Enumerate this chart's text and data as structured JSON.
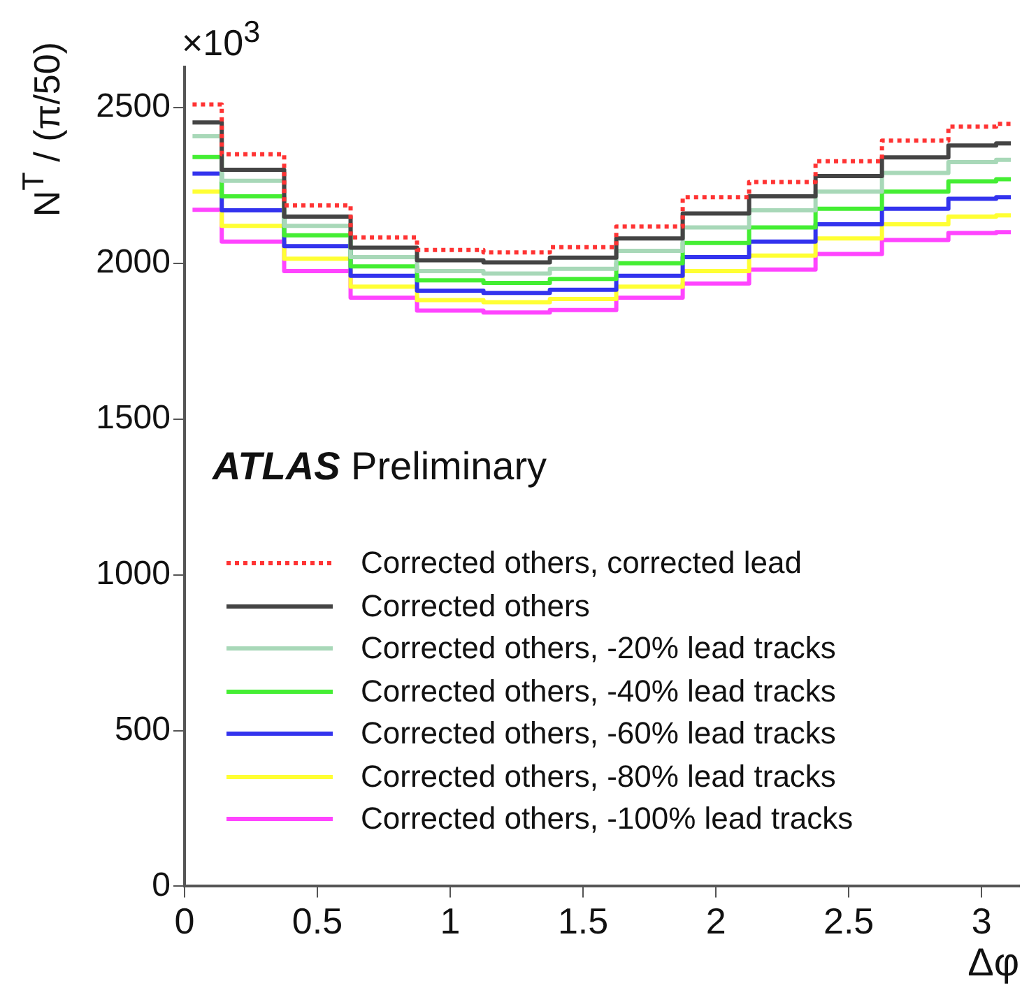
{
  "chart_data": {
    "type": "step",
    "xlabel": "Δφ",
    "ylabel": "N$^{T}$ / (π/50)",
    "annotations": [
      "×10$^{3}$",
      "ATLAS Preliminary"
    ],
    "x": [
      0.03,
      0.25,
      0.5,
      0.75,
      1.0,
      1.25,
      1.5,
      1.75,
      2.0,
      2.25,
      2.5,
      2.75,
      3.0,
      3.11
    ],
    "xlim": [
      0,
      3.1416
    ],
    "xticks": [
      0,
      0.5,
      1,
      1.5,
      2,
      2.5,
      3
    ],
    "ylim": [
      0,
      2630
    ],
    "yticks": [
      0,
      500,
      1000,
      1500,
      2000,
      2500
    ],
    "grid": false,
    "legend": "bottom",
    "marker": "none",
    "series": [
      {
        "name": "Corrected others, corrected lead",
        "color": "#ff3333",
        "line_style": "dotted",
        "values": [
          2510,
          2350,
          2186,
          2083,
          2043,
          2035,
          2052,
          2118,
          2212,
          2261,
          2328,
          2394,
          2439,
          2448
        ]
      },
      {
        "name": "Corrected others",
        "color": "#444444",
        "line_style": "solid",
        "values": [
          2452,
          2300,
          2150,
          2050,
          2010,
          2003,
          2018,
          2080,
          2160,
          2215,
          2280,
          2340,
          2378,
          2385
        ]
      },
      {
        "name": "Corrected others, -20% lead tracks",
        "color": "#a8d8b8",
        "line_style": "solid",
        "values": [
          2408,
          2265,
          2120,
          2020,
          1975,
          1967,
          1982,
          2040,
          2115,
          2170,
          2230,
          2290,
          2325,
          2332
        ]
      },
      {
        "name": "Corrected others, -40% lead tracks",
        "color": "#44ee33",
        "line_style": "solid",
        "values": [
          2341,
          2215,
          2090,
          1990,
          1945,
          1937,
          1950,
          2000,
          2065,
          2115,
          2175,
          2230,
          2263,
          2270
        ]
      },
      {
        "name": "Corrected others, -60% lead tracks",
        "color": "#3333ee",
        "line_style": "solid",
        "values": [
          2288,
          2170,
          2055,
          1960,
          1912,
          1905,
          1915,
          1960,
          2020,
          2070,
          2125,
          2175,
          2207,
          2212
        ]
      },
      {
        "name": "Corrected others, -80% lead tracks",
        "color": "#ffff33",
        "line_style": "solid",
        "values": [
          2230,
          2120,
          2015,
          1925,
          1882,
          1875,
          1885,
          1925,
          1975,
          2025,
          2080,
          2125,
          2150,
          2154
        ]
      },
      {
        "name": "Corrected others, -100% lead tracks",
        "color": "#ff44ff",
        "line_style": "solid",
        "values": [
          2172,
          2070,
          1975,
          1890,
          1848,
          1842,
          1850,
          1890,
          1935,
          1980,
          2030,
          2075,
          2097,
          2100
        ]
      }
    ]
  }
}
